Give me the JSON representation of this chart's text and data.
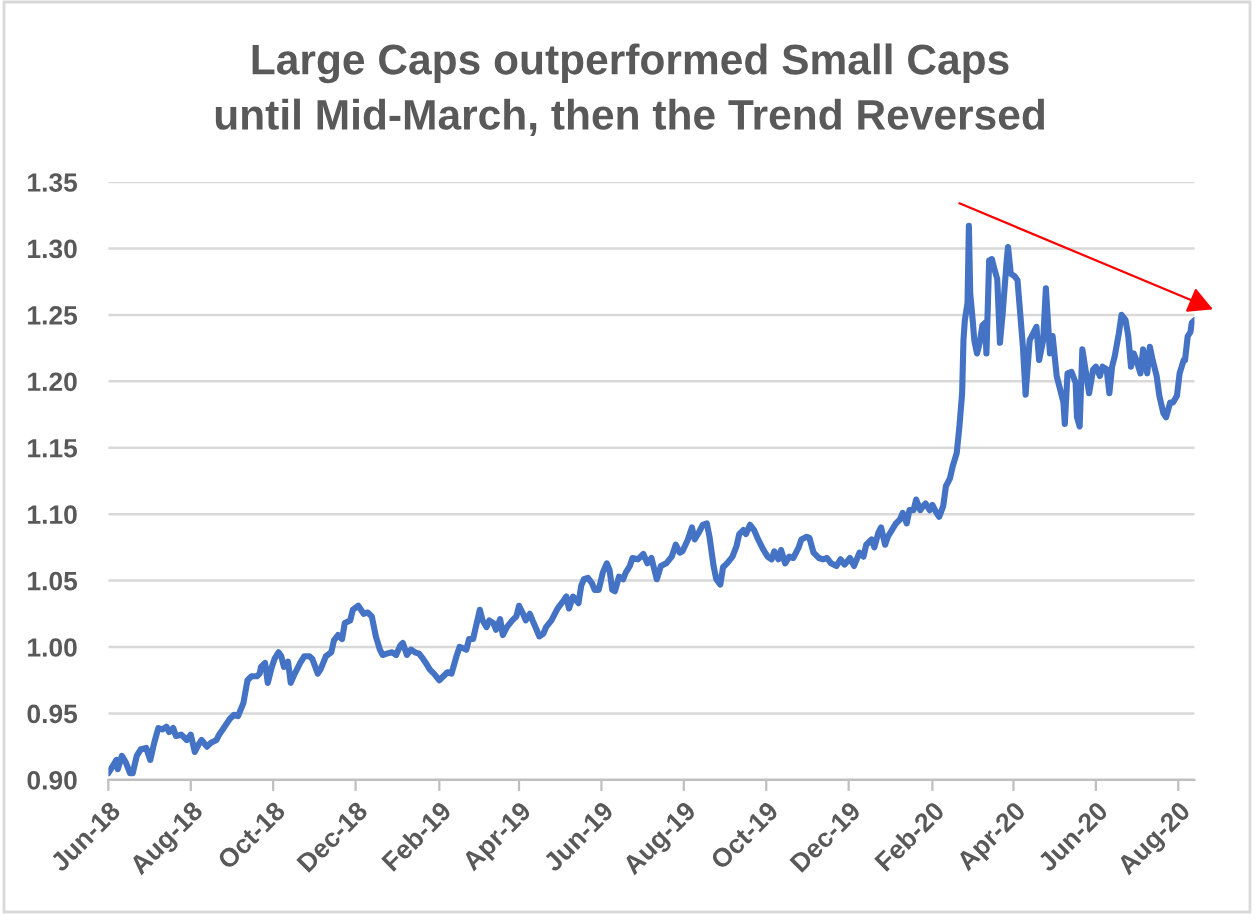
{
  "chart_data": {
    "type": "line",
    "title": "Large Caps outperformed Small Caps\nuntil Mid-March, then the Trend Reversed",
    "x": [
      "2018-06-01",
      "2018-06-04",
      "2018-06-07",
      "2018-06-08",
      "2018-06-11",
      "2018-06-14",
      "2018-06-17",
      "2018-06-19",
      "2018-06-22",
      "2018-06-25",
      "2018-06-29",
      "2018-07-02",
      "2018-07-05",
      "2018-07-08",
      "2018-07-11",
      "2018-07-14",
      "2018-07-16",
      "2018-07-19",
      "2018-07-21",
      "2018-07-25",
      "2018-07-29",
      "2018-08-01",
      "2018-08-04",
      "2018-08-07",
      "2018-08-09",
      "2018-08-13",
      "2018-08-16",
      "2018-08-20",
      "2018-08-22",
      "2018-08-26",
      "2018-08-30",
      "2018-09-02",
      "2018-09-05",
      "2018-09-09",
      "2018-09-12",
      "2018-09-15",
      "2018-09-19",
      "2018-09-21",
      "2018-09-22",
      "2018-09-25",
      "2018-09-27",
      "2018-09-30",
      "2018-10-02",
      "2018-10-05",
      "2018-10-07",
      "2018-10-09",
      "2018-10-12",
      "2018-10-14",
      "2018-10-17",
      "2018-10-21",
      "2018-10-24",
      "2018-10-28",
      "2018-10-30",
      "2018-11-03",
      "2018-11-05",
      "2018-11-09",
      "2018-11-13",
      "2018-11-15",
      "2018-11-18",
      "2018-11-21",
      "2018-11-23",
      "2018-11-27",
      "2018-11-29",
      "2018-12-03",
      "2018-12-07",
      "2018-12-10",
      "2018-12-13",
      "2018-12-16",
      "2018-12-19",
      "2018-12-21",
      "2018-12-24",
      "2018-12-28",
      "2018-12-31",
      "2019-01-03",
      "2019-01-05",
      "2019-01-08",
      "2019-01-11",
      "2019-01-14",
      "2019-01-17",
      "2019-01-20",
      "2019-01-22",
      "2019-01-25",
      "2019-01-28",
      "2019-02-01",
      "2019-02-04",
      "2019-02-07",
      "2019-02-10",
      "2019-02-14",
      "2019-02-16",
      "2019-02-19",
      "2019-02-21",
      "2019-02-23",
      "2019-02-26",
      "2019-02-28",
      "2019-03-03",
      "2019-03-05",
      "2019-03-08",
      "2019-03-10",
      "2019-03-13",
      "2019-03-15",
      "2019-03-18",
      "2019-03-20",
      "2019-03-23",
      "2019-03-27",
      "2019-03-30",
      "2019-04-01",
      "2019-04-04",
      "2019-04-06",
      "2019-04-09",
      "2019-04-11",
      "2019-04-14",
      "2019-04-16",
      "2019-04-19",
      "2019-04-21",
      "2019-04-25",
      "2019-04-29",
      "2019-05-01",
      "2019-05-04",
      "2019-05-06",
      "2019-05-08",
      "2019-05-11",
      "2019-05-15",
      "2019-05-17",
      "2019-05-19",
      "2019-05-22",
      "2019-05-25",
      "2019-05-27",
      "2019-05-30",
      "2019-06-02",
      "2019-06-05",
      "2019-06-07",
      "2019-06-09",
      "2019-06-11",
      "2019-06-14",
      "2019-06-17",
      "2019-06-19",
      "2019-06-22",
      "2019-06-24",
      "2019-06-28",
      "2019-07-02",
      "2019-07-05",
      "2019-07-08",
      "2019-07-12",
      "2019-07-15",
      "2019-07-19",
      "2019-07-23",
      "2019-07-26",
      "2019-07-29",
      "2019-07-31",
      "2019-08-04",
      "2019-08-07",
      "2019-08-09",
      "2019-08-12",
      "2019-08-15",
      "2019-08-18",
      "2019-08-20",
      "2019-08-23",
      "2019-08-25",
      "2019-08-28",
      "2019-08-30",
      "2019-09-02",
      "2019-09-06",
      "2019-09-09",
      "2019-09-11",
      "2019-09-14",
      "2019-09-16",
      "2019-09-19",
      "2019-09-22",
      "2019-09-25",
      "2019-09-29",
      "2019-10-02",
      "2019-10-05",
      "2019-10-07",
      "2019-10-10",
      "2019-10-12",
      "2019-10-15",
      "2019-10-18",
      "2019-10-21",
      "2019-10-25",
      "2019-10-27",
      "2019-10-31",
      "2019-11-02",
      "2019-11-05",
      "2019-11-09",
      "2019-11-12",
      "2019-11-15",
      "2019-11-18",
      "2019-11-22",
      "2019-11-25",
      "2019-11-28",
      "2019-12-02",
      "2019-12-05",
      "2019-12-09",
      "2019-12-12",
      "2019-12-14",
      "2019-12-18",
      "2019-12-20",
      "2019-12-23",
      "2019-12-25",
      "2019-12-28",
      "2019-12-30",
      "2020-01-02",
      "2020-01-05",
      "2020-01-08",
      "2020-01-10",
      "2020-01-13",
      "2020-01-15",
      "2020-01-18",
      "2020-01-20",
      "2020-01-23",
      "2020-01-25",
      "2020-01-27",
      "2020-01-30",
      "2020-02-01",
      "2020-02-04",
      "2020-02-06",
      "2020-02-09",
      "2020-02-11",
      "2020-02-14",
      "2020-02-16",
      "2020-02-19",
      "2020-02-21",
      "2020-02-23",
      "2020-02-24",
      "2020-02-25",
      "2020-02-27",
      "2020-02-28",
      "2020-02-29",
      "2020-03-02",
      "2020-03-03",
      "2020-03-05",
      "2020-03-07",
      "2020-03-09",
      "2020-03-11",
      "2020-03-12",
      "2020-03-14",
      "2020-03-16",
      "2020-03-18",
      "2020-03-20",
      "2020-03-22",
      "2020-03-24",
      "2020-03-27",
      "2020-03-28",
      "2020-03-30",
      "2020-04-02",
      "2020-04-04",
      "2020-04-06",
      "2020-04-08",
      "2020-04-10",
      "2020-04-13",
      "2020-04-15",
      "2020-04-18",
      "2020-04-20",
      "2020-04-23",
      "2020-04-25",
      "2020-04-28",
      "2020-04-30",
      "2020-05-03",
      "2020-05-05",
      "2020-05-08",
      "2020-05-09",
      "2020-05-11",
      "2020-05-14",
      "2020-05-17",
      "2020-05-18",
      "2020-05-20",
      "2020-05-22",
      "2020-05-24",
      "2020-05-27",
      "2020-05-30",
      "2020-06-01",
      "2020-06-04",
      "2020-06-06",
      "2020-06-09",
      "2020-06-11",
      "2020-06-13",
      "2020-06-15",
      "2020-06-18",
      "2020-06-20",
      "2020-06-23",
      "2020-06-25",
      "2020-06-27",
      "2020-06-29",
      "2020-07-01",
      "2020-07-04",
      "2020-07-06",
      "2020-07-09",
      "2020-07-11",
      "2020-07-13",
      "2020-07-16",
      "2020-07-18",
      "2020-07-21",
      "2020-07-23",
      "2020-07-26",
      "2020-07-28",
      "2020-07-31",
      "2020-08-02",
      "2020-08-05",
      "2020-08-06",
      "2020-08-08",
      "2020-08-10",
      "2020-08-11",
      "2020-08-13"
    ],
    "series": [
      {
        "color": "#4472c4",
        "values": [
          0.905,
          0.91,
          0.915,
          0.908,
          0.918,
          0.913,
          0.905,
          0.905,
          0.918,
          0.923,
          0.924,
          0.915,
          0.928,
          0.939,
          0.938,
          0.94,
          0.936,
          0.939,
          0.933,
          0.934,
          0.93,
          0.934,
          0.921,
          0.927,
          0.93,
          0.925,
          0.928,
          0.93,
          0.934,
          0.94,
          0.946,
          0.949,
          0.948,
          0.958,
          0.975,
          0.978,
          0.978,
          0.98,
          0.985,
          0.988,
          0.973,
          0.985,
          0.991,
          0.996,
          0.993,
          0.985,
          0.989,
          0.973,
          0.98,
          0.988,
          0.993,
          0.993,
          0.991,
          0.98,
          0.983,
          0.993,
          0.996,
          1.005,
          1.009,
          1.006,
          1.018,
          1.02,
          1.028,
          1.031,
          1.025,
          1.026,
          1.023,
          1.008,
          0.998,
          0.994,
          0.995,
          0.996,
          0.994,
          1.001,
          1.003,
          0.994,
          0.998,
          0.996,
          0.995,
          0.991,
          0.988,
          0.983,
          0.98,
          0.975,
          0.978,
          0.981,
          0.98,
          0.994,
          1.0,
          0.999,
          0.998,
          1.006,
          1.006,
          1.015,
          1.028,
          1.02,
          1.015,
          1.02,
          1.018,
          1.013,
          1.021,
          1.009,
          1.015,
          1.02,
          1.023,
          1.031,
          1.025,
          1.02,
          1.025,
          1.02,
          1.013,
          1.008,
          1.01,
          1.015,
          1.02,
          1.028,
          1.031,
          1.035,
          1.038,
          1.029,
          1.038,
          1.033,
          1.046,
          1.051,
          1.052,
          1.048,
          1.043,
          1.043,
          1.056,
          1.063,
          1.058,
          1.043,
          1.042,
          1.053,
          1.051,
          1.056,
          1.061,
          1.067,
          1.066,
          1.07,
          1.063,
          1.067,
          1.051,
          1.061,
          1.063,
          1.068,
          1.077,
          1.071,
          1.072,
          1.081,
          1.09,
          1.081,
          1.086,
          1.092,
          1.093,
          1.083,
          1.061,
          1.051,
          1.047,
          1.06,
          1.063,
          1.068,
          1.076,
          1.085,
          1.088,
          1.085,
          1.092,
          1.088,
          1.081,
          1.073,
          1.068,
          1.066,
          1.072,
          1.066,
          1.073,
          1.063,
          1.068,
          1.067,
          1.075,
          1.081,
          1.083,
          1.082,
          1.071,
          1.067,
          1.066,
          1.067,
          1.063,
          1.061,
          1.066,
          1.062,
          1.067,
          1.061,
          1.071,
          1.068,
          1.077,
          1.081,
          1.075,
          1.086,
          1.09,
          1.077,
          1.083,
          1.088,
          1.093,
          1.096,
          1.101,
          1.093,
          1.103,
          1.103,
          1.111,
          1.103,
          1.106,
          1.108,
          1.103,
          1.107,
          1.101,
          1.098,
          1.106,
          1.121,
          1.127,
          1.136,
          1.146,
          1.166,
          1.191,
          1.231,
          1.246,
          1.259,
          1.317,
          1.266,
          1.244,
          1.231,
          1.221,
          1.229,
          1.242,
          1.244,
          1.221,
          1.291,
          1.292,
          1.284,
          1.277,
          1.229,
          1.251,
          1.291,
          1.301,
          1.281,
          1.279,
          1.276,
          1.251,
          1.226,
          1.19,
          1.231,
          1.235,
          1.241,
          1.216,
          1.231,
          1.27,
          1.221,
          1.234,
          1.204,
          1.196,
          1.184,
          1.168,
          1.206,
          1.207,
          1.199,
          1.173,
          1.166,
          1.224,
          1.211,
          1.191,
          1.209,
          1.211,
          1.204,
          1.211,
          1.209,
          1.191,
          1.211,
          1.219,
          1.236,
          1.25,
          1.246,
          1.234,
          1.211,
          1.221,
          1.216,
          1.206,
          1.224,
          1.206,
          1.226,
          1.216,
          1.204,
          1.189,
          1.176,
          1.173,
          1.184,
          1.184,
          1.189,
          1.206,
          1.216,
          1.216,
          1.234,
          1.237,
          1.244,
          1.246
        ]
      },
      {
        "type": "line",
        "color": "#ff0000",
        "x": [
          "2020-02-21",
          "2020-08-13"
        ],
        "values": [
          1.334,
          1.26
        ]
      }
    ],
    "xlim": [
      "2018-06-01",
      "2020-08-13"
    ],
    "xticks": [
      {
        "value": "2018-06-01",
        "label": "Jun-18"
      },
      {
        "value": "2018-08-01",
        "label": "Aug-18"
      },
      {
        "value": "2018-10-01",
        "label": "Oct-18"
      },
      {
        "value": "2018-12-01",
        "label": "Dec-18"
      },
      {
        "value": "2019-02-01",
        "label": "Feb-19"
      },
      {
        "value": "2019-04-01",
        "label": "Apr-19"
      },
      {
        "value": "2019-06-01",
        "label": "Jun-19"
      },
      {
        "value": "2019-08-01",
        "label": "Aug-19"
      },
      {
        "value": "2019-10-01",
        "label": "Oct-19"
      },
      {
        "value": "2019-12-01",
        "label": "Dec-19"
      },
      {
        "value": "2020-02-01",
        "label": "Feb-20"
      },
      {
        "value": "2020-04-01",
        "label": "Apr-20"
      },
      {
        "value": "2020-06-01",
        "label": "Jun-20"
      },
      {
        "value": "2020-08-01",
        "label": "Aug-20"
      }
    ],
    "ylim": [
      0.9,
      1.35
    ],
    "yticks": [
      {
        "value": 0.9,
        "label": "0.90"
      },
      0.95,
      {
        "value": 1.0,
        "label": "1.00"
      },
      1.05,
      {
        "value": 1.1,
        "label": "1.10"
      },
      1.15,
      {
        "value": 1.2,
        "label": "1.20"
      },
      1.25,
      {
        "value": 1.3,
        "label": "1.30"
      },
      1.35
    ],
    "grid": "y"
  }
}
